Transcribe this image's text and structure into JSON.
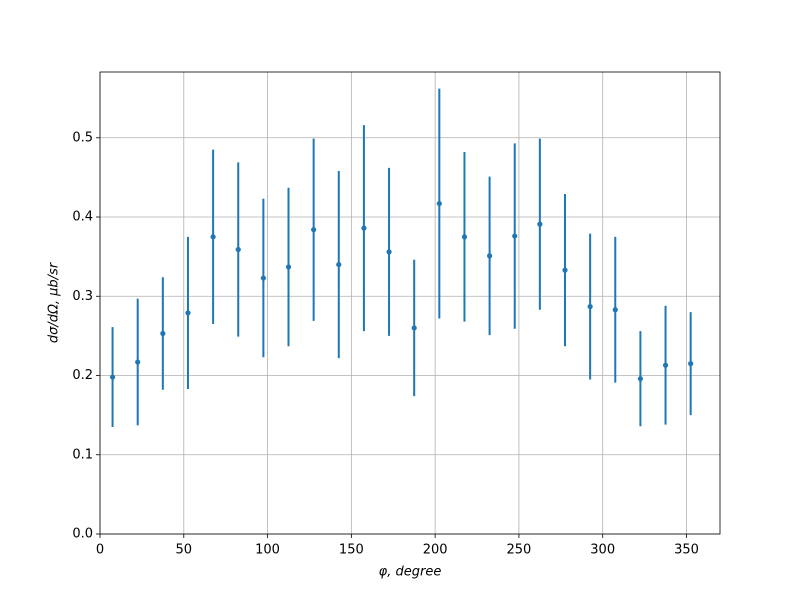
{
  "chart_data": {
    "type": "errorbar",
    "x_label": "φ, degree",
    "y_label": "dσ/dΩ, μb/sr",
    "x": [
      7.5,
      22.5,
      37.5,
      52.5,
      67.5,
      82.5,
      97.5,
      112.5,
      127.5,
      142.5,
      157.5,
      172.5,
      187.5,
      202.5,
      217.5,
      232.5,
      247.5,
      262.5,
      277.5,
      292.5,
      307.5,
      322.5,
      337.5,
      352.5
    ],
    "values": [
      0.198,
      0.217,
      0.253,
      0.279,
      0.375,
      0.359,
      0.323,
      0.337,
      0.384,
      0.34,
      0.386,
      0.356,
      0.26,
      0.417,
      0.375,
      0.351,
      0.376,
      0.391,
      0.333,
      0.287,
      0.283,
      0.196,
      0.213,
      0.215
    ],
    "errors": [
      0.063,
      0.08,
      0.071,
      0.096,
      0.11,
      0.11,
      0.1,
      0.1,
      0.115,
      0.118,
      0.13,
      0.106,
      0.086,
      0.145,
      0.107,
      0.1,
      0.117,
      0.108,
      0.096,
      0.092,
      0.092,
      0.06,
      0.075,
      0.065
    ],
    "color": "#1f77b4",
    "xlim": [
      0,
      370
    ],
    "xticks": [
      0,
      50,
      100,
      150,
      200,
      250,
      300,
      350
    ],
    "ylim": [
      0,
      0.583
    ],
    "yticks": [
      {
        "value": 0,
        "label": "0.0"
      },
      0.1,
      0.2,
      0.3,
      0.4,
      0.5
    ],
    "grid": true
  }
}
